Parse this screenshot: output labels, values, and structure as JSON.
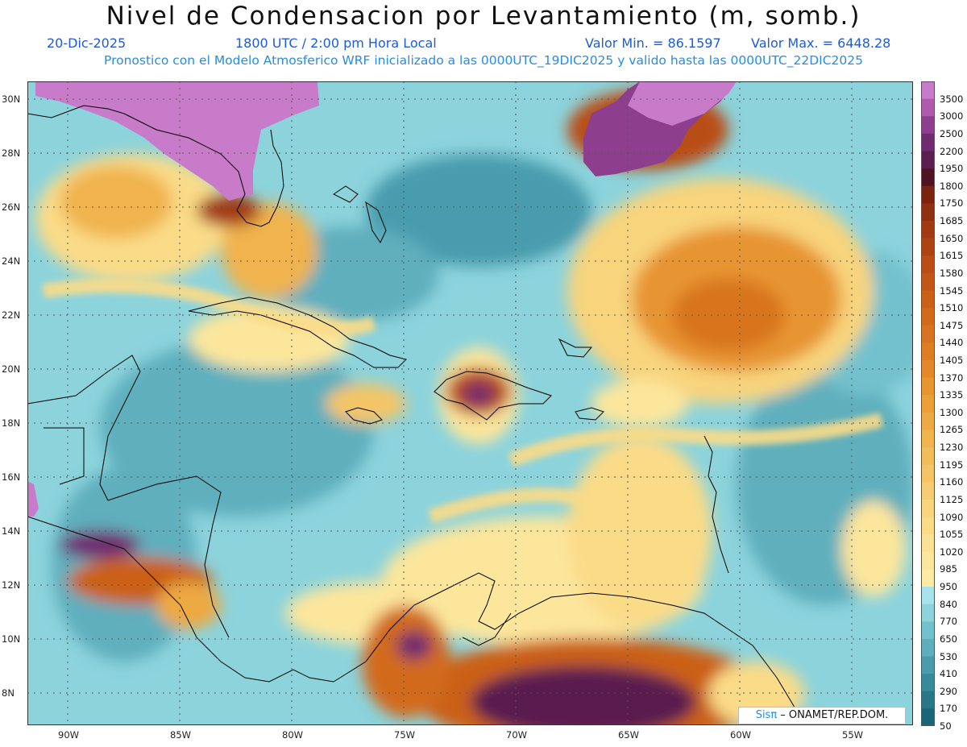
{
  "title": "Nivel de Condensacion por Levantamiento (m, somb.)",
  "date": "20-Dic-2025",
  "time": "1800 UTC / 2:00 pm Hora Local",
  "value_min": "Valor Min. = 86.1597",
  "value_max": "Valor Max. = 6448.28",
  "forecast_note": "Pronostico con el Modelo Atmosferico WRF inicializado a las 0000UTC_19DIC2025 y valido hasta las  0000UTC_22DIC2025",
  "credit_brand": "Sisπ",
  "credit_org": " – ONAMET/REP.DOM.",
  "lat_labels": [
    "30N",
    "28N",
    "26N",
    "24N",
    "22N",
    "20N",
    "18N",
    "16N",
    "14N",
    "12N",
    "10N",
    "8N"
  ],
  "lon_labels": [
    "90W",
    "85W",
    "80W",
    "75W",
    "70W",
    "65W",
    "60W",
    "55W"
  ],
  "colorbar_labels": [
    "3500",
    "3000",
    "2500",
    "2200",
    "1950",
    "1800",
    "1750",
    "1685",
    "1650",
    "1615",
    "1580",
    "1545",
    "1510",
    "1475",
    "1440",
    "1405",
    "1370",
    "1335",
    "1300",
    "1265",
    "1230",
    "1195",
    "1160",
    "1125",
    "1090",
    "1055",
    "1020",
    "985",
    "950",
    "840",
    "770",
    "650",
    "530",
    "410",
    "290",
    "170",
    "50"
  ],
  "colorbar_colors": [
    "#c77bc9",
    "#b05aad",
    "#8d3f8d",
    "#6f2a70",
    "#5a1e50",
    "#4e1520",
    "#7a2410",
    "#8f3010",
    "#a13a12",
    "#ad4313",
    "#b94d14",
    "#c25616",
    "#cb6018",
    "#d26a1b",
    "#d8741f",
    "#de7e23",
    "#e38929",
    "#e79431",
    "#ea9f39",
    "#eda943",
    "#f0b34e",
    "#f2bc5a",
    "#f4c566",
    "#f6cd72",
    "#f8d47d",
    "#fadb88",
    "#fbe192",
    "#fce69c",
    "#fdeaa4",
    "#a6e3ea",
    "#8cd3dc",
    "#73c1cd",
    "#5eafbd",
    "#4a9cad",
    "#37899c",
    "#277689",
    "#1a6579"
  ]
}
